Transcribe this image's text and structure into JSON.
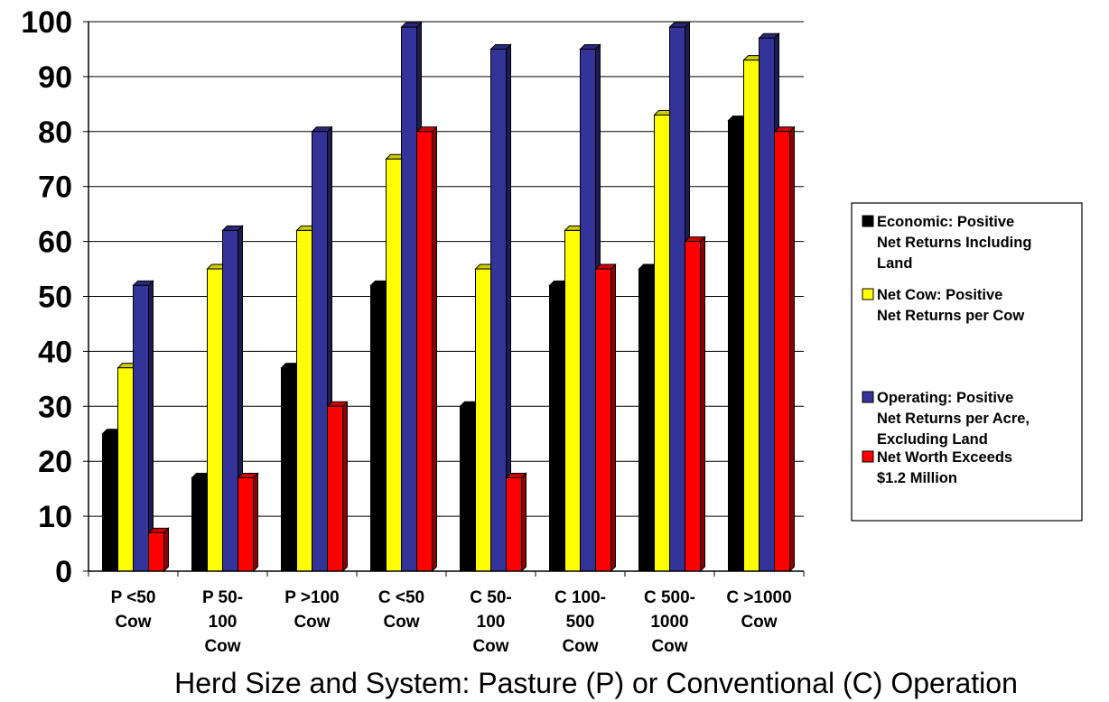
{
  "chart_data": {
    "type": "bar",
    "title": "",
    "xlabel": "Herd Size and System:  Pasture (P) or Conventional (C) Operation",
    "ylabel": "",
    "ylim": [
      0,
      100
    ],
    "yticks": [
      "0",
      "10",
      "20",
      "30",
      "40",
      "50",
      "60",
      "70",
      "80",
      "90",
      "100"
    ],
    "grid": true,
    "legend_position": "right",
    "categories": [
      [
        "P <50",
        "Cow"
      ],
      [
        "P 50-",
        "100",
        "Cow"
      ],
      [
        "P >100",
        "Cow"
      ],
      [
        "C <50",
        "Cow"
      ],
      [
        "C 50-",
        "100",
        "Cow"
      ],
      [
        "C 100-",
        "500",
        "Cow"
      ],
      [
        "C 500-",
        "1000",
        "Cow"
      ],
      [
        "C >1000",
        "Cow"
      ]
    ],
    "series": [
      {
        "name": [
          "Economic:  Positive",
          "Net Returns Including",
          "Land"
        ],
        "color": "#000000",
        "values": [
          25,
          17,
          37,
          52,
          30,
          52,
          55,
          82
        ]
      },
      {
        "name": [
          "Net Cow:  Positive",
          "Net Returns per Cow"
        ],
        "color": "#ffff00",
        "values": [
          37,
          55,
          62,
          75,
          55,
          62,
          83,
          93
        ]
      },
      {
        "name": [
          "Operating:  Positive",
          "Net Returns per Acre,",
          "Excluding Land"
        ],
        "color": "#333399",
        "values": [
          52,
          62,
          80,
          99,
          95,
          95,
          99,
          97
        ]
      },
      {
        "name": [
          "Net Worth Exceeds",
          "$1.2 Million"
        ],
        "color": "#ff0000",
        "values": [
          7,
          17,
          30,
          80,
          17,
          55,
          60,
          80
        ]
      }
    ]
  }
}
